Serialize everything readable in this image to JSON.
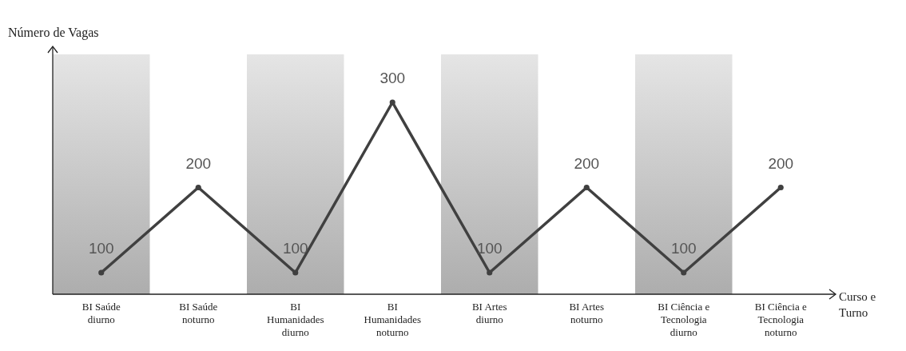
{
  "chart_data": {
    "type": "line",
    "ylabel": "Número de Vagas",
    "xlabel": "Curso e\nTurno",
    "categories": [
      "BI Saúde\ndiurno",
      "BI Saúde\nnoturno",
      "BI\nHumanidades\ndiurno",
      "BI\nHumanidades\nnoturno",
      "BI Artes\ndiurno",
      "BI Artes\nnoturno",
      "BI Ciência e\nTecnologia\ndiurno",
      "BI Ciência e\nTecnologia\nnoturno"
    ],
    "series": [
      {
        "color": "#404040",
        "values": [
          100,
          200,
          100,
          300,
          100,
          200,
          100,
          200
        ]
      }
    ],
    "marker": "circle",
    "data_labels": true,
    "bands": [
      {
        "axis": "x",
        "from": "BI Saúde\ndiurno",
        "to": "BI Saúde\ndiurno",
        "color": "#c0c0c0"
      },
      {
        "axis": "x",
        "from": "BI\nHumanidades\ndiurno",
        "to": "BI\nHumanidades\ndiurno",
        "color": "#c0c0c0"
      },
      {
        "axis": "x",
        "from": "BI Artes\ndiurno",
        "to": "BI Artes\ndiurno",
        "color": "#c0c0c0"
      },
      {
        "axis": "x",
        "from": "BI Ciência e\nTecnologia\ndiurno",
        "to": "BI Ciência e\nTecnologia\ndiurno",
        "color": "#c0c0c0"
      }
    ]
  }
}
